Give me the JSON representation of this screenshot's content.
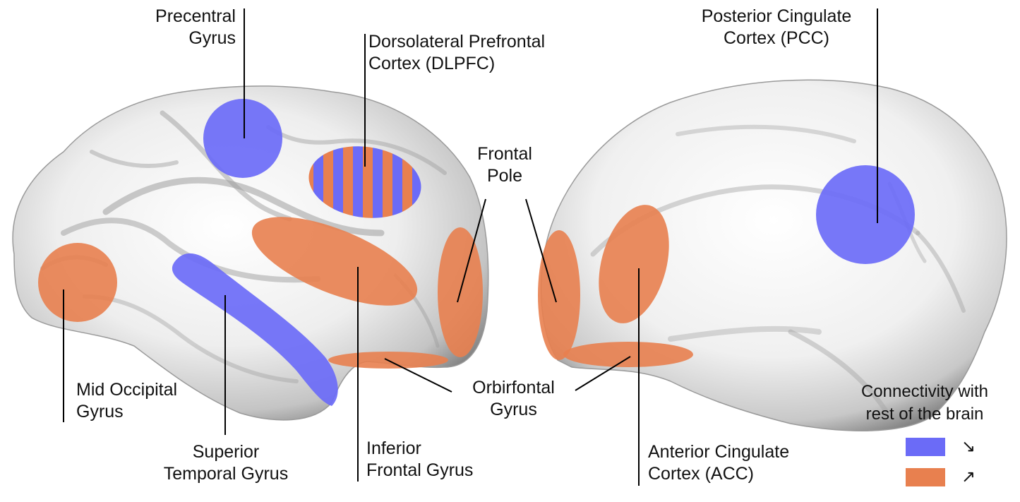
{
  "colors": {
    "decreased": "#6b6bf7",
    "increased": "#e8804f",
    "brain_light": "#f4f4f4",
    "brain_dark": "#8a8a8a"
  },
  "labels": {
    "precentral": [
      "Precentral",
      "Gyrus"
    ],
    "dlpfc": [
      "Dorsolateral Prefrontal",
      "Cortex (DLPFC)"
    ],
    "frontal_pole": [
      "Frontal",
      "Pole"
    ],
    "pcc": [
      "Posterior Cingulate",
      "Cortex (PCC)"
    ],
    "mid_occipital": [
      "Mid Occipital",
      "Gyrus"
    ],
    "superior_temporal": [
      "Superior",
      "Temporal Gyrus"
    ],
    "inferior_frontal": [
      "Inferior",
      "Frontal Gyrus"
    ],
    "orbitofrontal": [
      "Orbirfontal",
      "Gyrus"
    ],
    "acc": [
      "Anterior Cingulate",
      "Cortex (ACC)"
    ]
  },
  "legend": {
    "title": [
      "Connectivity with",
      "rest of the brain"
    ],
    "decreased_icon": "arrow-down-right-icon",
    "decreased_glyph": "↘",
    "increased_icon": "arrow-up-right-icon",
    "increased_glyph": "↗"
  }
}
